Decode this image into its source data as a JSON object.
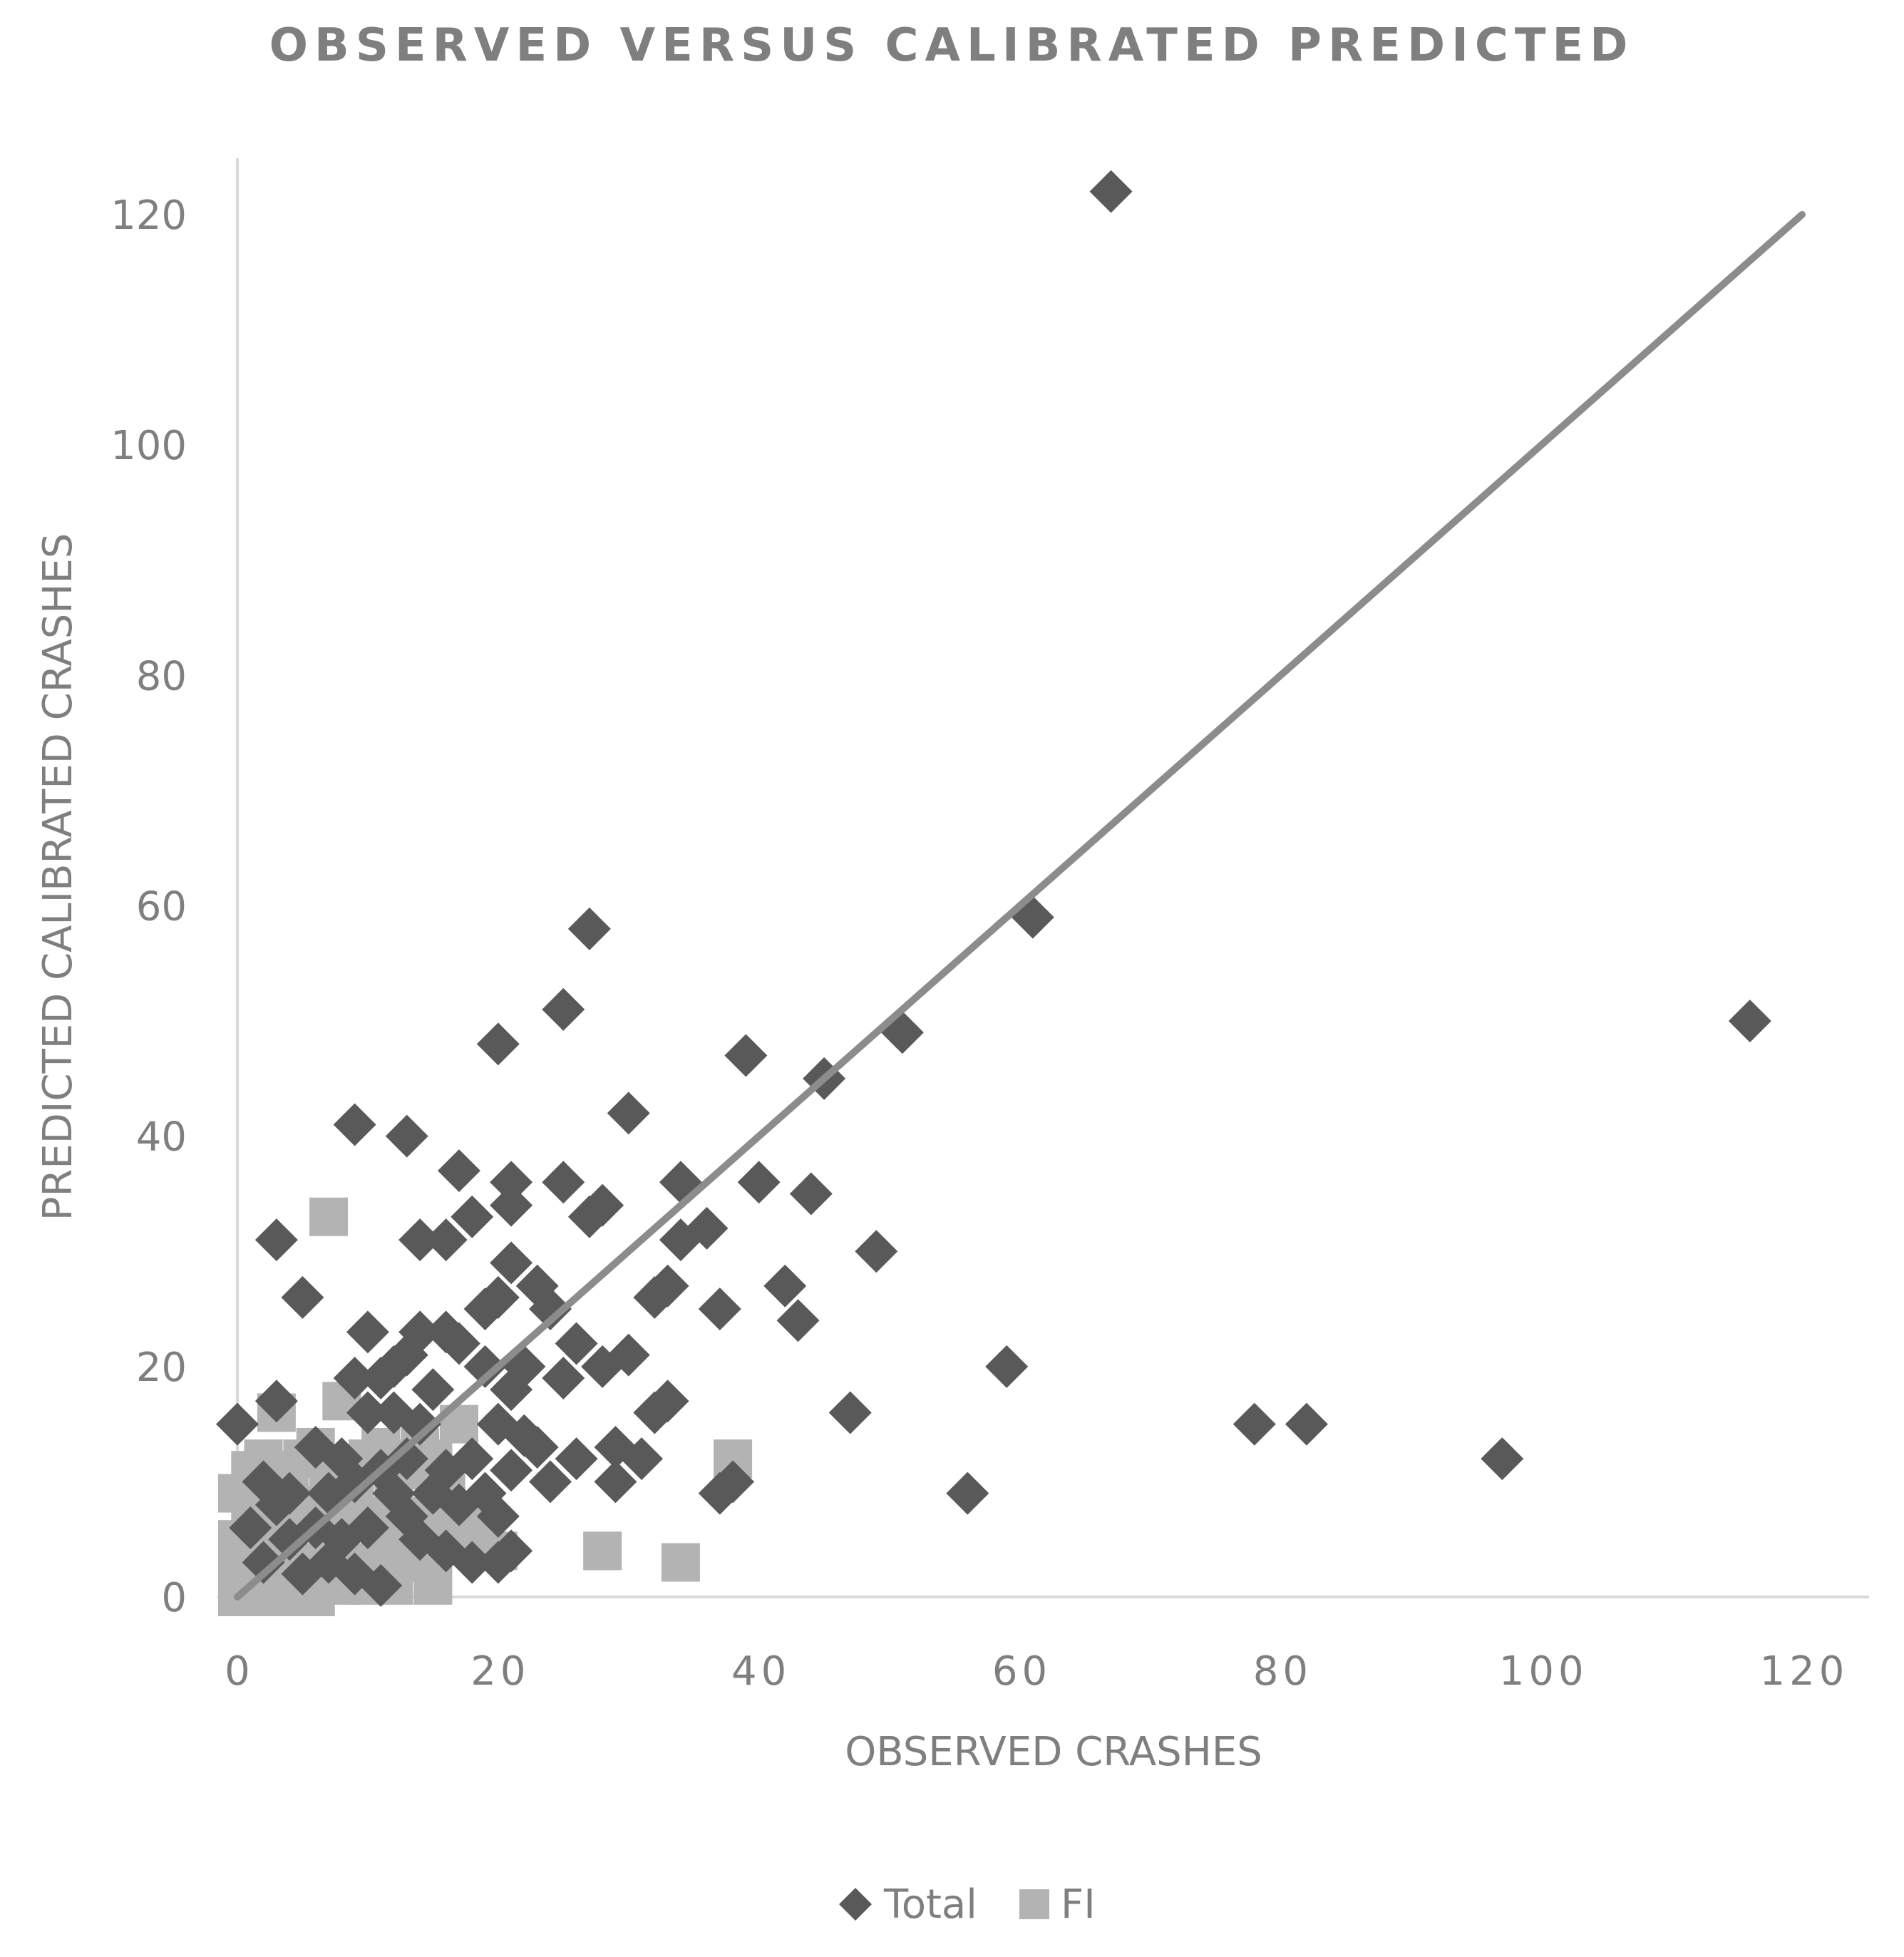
{
  "chart_data": {
    "type": "scatter",
    "title": "OBSERVED VERSUS CALIBRATED PREDICTED",
    "xlabel": "OBSERVED CRASHES",
    "ylabel": "PREDICTED CALIBRATED CRASHES",
    "xlim": [
      0,
      120
    ],
    "ylim": [
      0,
      120
    ],
    "x_ticks": [
      "0",
      "20",
      "40",
      "60",
      "80",
      "100",
      "120"
    ],
    "y_ticks": [
      "0",
      "20",
      "40",
      "60",
      "80",
      "100",
      "120"
    ],
    "legend_position": "bottom",
    "grid": false,
    "reference_line": {
      "x": [
        0,
        120
      ],
      "y": [
        0,
        120
      ],
      "color": "#8c8c8c"
    },
    "series": [
      {
        "name": "Total",
        "marker": "diamond",
        "color": "#595959",
        "points": [
          [
            67,
            122
          ],
          [
            27,
            58
          ],
          [
            61,
            59
          ],
          [
            116,
            50
          ],
          [
            25,
            51
          ],
          [
            51,
            49
          ],
          [
            20,
            48
          ],
          [
            39,
            47
          ],
          [
            45,
            45
          ],
          [
            9,
            41
          ],
          [
            13,
            40
          ],
          [
            30,
            42
          ],
          [
            17,
            37
          ],
          [
            21,
            36
          ],
          [
            25,
            36
          ],
          [
            34,
            36
          ],
          [
            40,
            36
          ],
          [
            44,
            35
          ],
          [
            3,
            31
          ],
          [
            14,
            31
          ],
          [
            16,
            31
          ],
          [
            18,
            33
          ],
          [
            21,
            34
          ],
          [
            27,
            33
          ],
          [
            28,
            34
          ],
          [
            34,
            31
          ],
          [
            36,
            32
          ],
          [
            49,
            30
          ],
          [
            5,
            26
          ],
          [
            20,
            26
          ],
          [
            23,
            27
          ],
          [
            32,
            26
          ],
          [
            33,
            27
          ],
          [
            37,
            25
          ],
          [
            42,
            27
          ],
          [
            43,
            24
          ],
          [
            19,
            25
          ],
          [
            21,
            29
          ],
          [
            24,
            25
          ],
          [
            10,
            23
          ],
          [
            12,
            20
          ],
          [
            14,
            23
          ],
          [
            16,
            23
          ],
          [
            17,
            22
          ],
          [
            13,
            21
          ],
          [
            19,
            20
          ],
          [
            22,
            20
          ],
          [
            26,
            22
          ],
          [
            30,
            21
          ],
          [
            11,
            19
          ],
          [
            9,
            19
          ],
          [
            15,
            18
          ],
          [
            21,
            18
          ],
          [
            25,
            19
          ],
          [
            28,
            20
          ],
          [
            59,
            20
          ],
          [
            33,
            17
          ],
          [
            0,
            15
          ],
          [
            3,
            17
          ],
          [
            10,
            16
          ],
          [
            12,
            16
          ],
          [
            14,
            15
          ],
          [
            20,
            15
          ],
          [
            22,
            14
          ],
          [
            32,
            16
          ],
          [
            47,
            16
          ],
          [
            78,
            15
          ],
          [
            82,
            15
          ],
          [
            6,
            13
          ],
          [
            23,
            13
          ],
          [
            26,
            12
          ],
          [
            29,
            13
          ],
          [
            31,
            12
          ],
          [
            97,
            12
          ],
          [
            8,
            12
          ],
          [
            11,
            11
          ],
          [
            13,
            12
          ],
          [
            16,
            11
          ],
          [
            18,
            12
          ],
          [
            21,
            11
          ],
          [
            24,
            10
          ],
          [
            29,
            10
          ],
          [
            38,
            10
          ],
          [
            37,
            9
          ],
          [
            56,
            9
          ],
          [
            2,
            10
          ],
          [
            4,
            9
          ],
          [
            7,
            9
          ],
          [
            9,
            10
          ],
          [
            12,
            9
          ],
          [
            15,
            9
          ],
          [
            17,
            8
          ],
          [
            19,
            9
          ],
          [
            20,
            7
          ],
          [
            21,
            4
          ],
          [
            18,
            3
          ],
          [
            20,
            3
          ],
          [
            11,
            1
          ],
          [
            4,
            5
          ],
          [
            6,
            6
          ],
          [
            8,
            5
          ],
          [
            10,
            6
          ],
          [
            13,
            7
          ],
          [
            14,
            5
          ],
          [
            16,
            4
          ],
          [
            1,
            6
          ],
          [
            2,
            3
          ],
          [
            3,
            8
          ],
          [
            5,
            2
          ],
          [
            7,
            3
          ],
          [
            9,
            2
          ]
        ]
      },
      {
        "name": "FI",
        "marker": "square",
        "color": "#b3b3b3",
        "points": [
          [
            7,
            33
          ],
          [
            8,
            17
          ],
          [
            3,
            16
          ],
          [
            17,
            15
          ],
          [
            38,
            12
          ],
          [
            28,
            4
          ],
          [
            34,
            3
          ],
          [
            18,
            6
          ],
          [
            20,
            4
          ],
          [
            15,
            1
          ],
          [
            0,
            9
          ],
          [
            1,
            11
          ],
          [
            2,
            12
          ],
          [
            3,
            10
          ],
          [
            4,
            11
          ],
          [
            5,
            12
          ],
          [
            6,
            13
          ],
          [
            7,
            10
          ],
          [
            8,
            9
          ],
          [
            9,
            11
          ],
          [
            10,
            12
          ],
          [
            11,
            13
          ],
          [
            12,
            12
          ],
          [
            13,
            11
          ],
          [
            14,
            13
          ],
          [
            15,
            12
          ],
          [
            16,
            10
          ],
          [
            0,
            5
          ],
          [
            1,
            6
          ],
          [
            2,
            7
          ],
          [
            3,
            6
          ],
          [
            4,
            7
          ],
          [
            5,
            8
          ],
          [
            6,
            7
          ],
          [
            7,
            6
          ],
          [
            8,
            7
          ],
          [
            9,
            8
          ],
          [
            10,
            7
          ],
          [
            11,
            6
          ],
          [
            12,
            8
          ],
          [
            13,
            6
          ],
          [
            14,
            7
          ],
          [
            15,
            6
          ],
          [
            16,
            8
          ],
          [
            17,
            7
          ],
          [
            0,
            2
          ],
          [
            1,
            3
          ],
          [
            2,
            2
          ],
          [
            3,
            3
          ],
          [
            4,
            2
          ],
          [
            5,
            3
          ],
          [
            6,
            2
          ],
          [
            7,
            3
          ],
          [
            8,
            2
          ],
          [
            9,
            3
          ],
          [
            10,
            2
          ],
          [
            11,
            3
          ],
          [
            12,
            4
          ],
          [
            13,
            3
          ],
          [
            14,
            4
          ],
          [
            15,
            5
          ],
          [
            16,
            5
          ],
          [
            0,
            0
          ],
          [
            1,
            1
          ],
          [
            2,
            0
          ],
          [
            3,
            1
          ],
          [
            4,
            0
          ],
          [
            5,
            1
          ],
          [
            6,
            0
          ],
          [
            8,
            1
          ],
          [
            10,
            1
          ],
          [
            12,
            1
          ]
        ]
      }
    ]
  }
}
